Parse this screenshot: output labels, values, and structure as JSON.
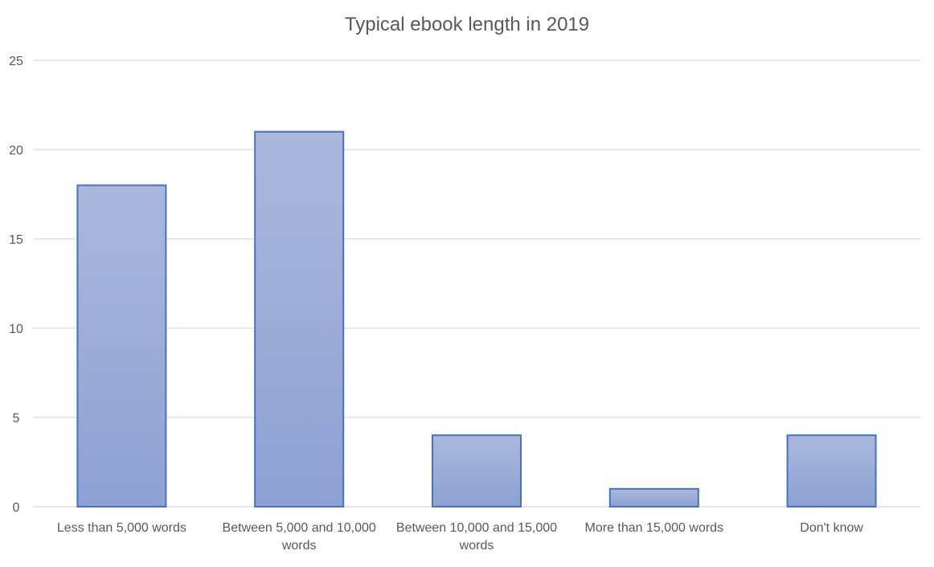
{
  "chart_data": {
    "type": "bar",
    "title": "Typical ebook length in 2019",
    "categories": [
      [
        "Less than 5,000 words"
      ],
      [
        "Between 5,000 and 10,000",
        "words"
      ],
      [
        "Between 10,000 and 15,000",
        "words"
      ],
      [
        "More than 15,000 words"
      ],
      [
        "Don't know"
      ]
    ],
    "values": [
      18,
      21,
      4,
      1,
      4
    ],
    "ylim": [
      0,
      25
    ],
    "yticks": [
      0,
      5,
      10,
      15,
      20,
      25
    ],
    "xlabel": "",
    "ylabel": "",
    "grid": true,
    "legend": "none",
    "colors": {
      "bar_top": "#abb8dc",
      "bar_bottom": "#8ea1d3",
      "bar_border": "#4472c4",
      "grid": "#d9d9d9",
      "text": "#595959"
    }
  }
}
